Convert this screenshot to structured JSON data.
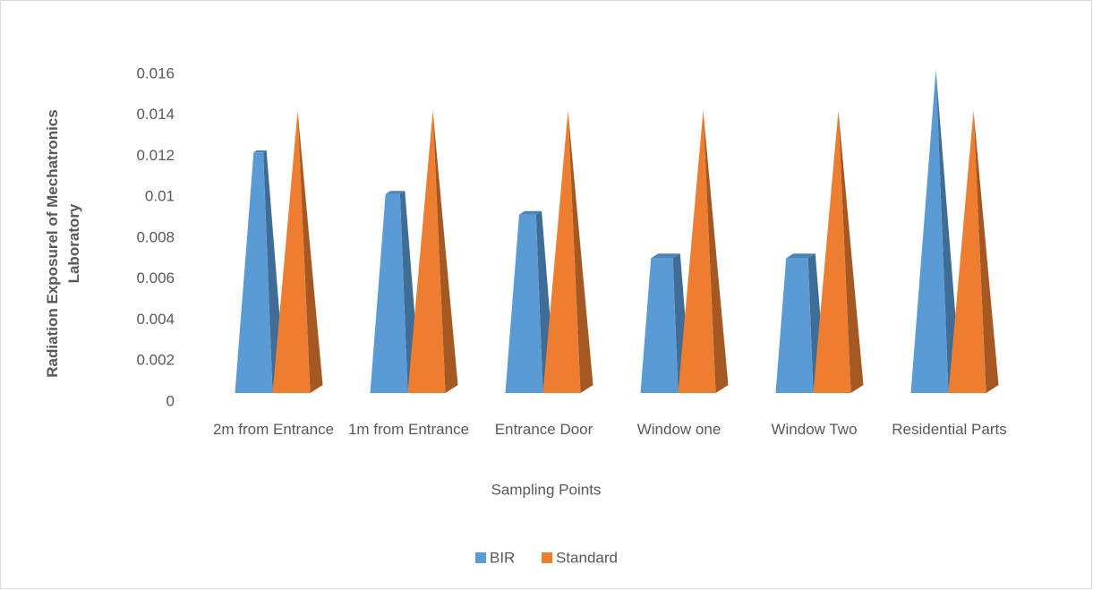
{
  "chart_data": {
    "type": "pyramid",
    "x_label": "Sampling Points",
    "y_label": "Radiation Exposurel of Mechatronics Laboratory",
    "categories": [
      "2m from Entrance",
      "1m from Entrance",
      "Entrance Door",
      "Window one",
      "Window Two",
      "Residential Parts"
    ],
    "series": [
      {
        "name": "BIR",
        "color": "#5b9bd5",
        "values": [
          0.0116,
          0.0096,
          0.0086,
          0.0065,
          0.0065,
          0.0156
        ]
      },
      {
        "name": "Standard",
        "color": "#ed7d31",
        "values": [
          0.0136,
          0.0136,
          0.0136,
          0.0136,
          0.0136,
          0.0136
        ]
      }
    ],
    "ylim": [
      0,
      0.016
    ],
    "yticks": [
      0,
      0.002,
      0.004,
      0.006,
      0.008,
      0.01,
      0.012,
      0.014,
      0.016
    ],
    "legend": "bottom"
  }
}
